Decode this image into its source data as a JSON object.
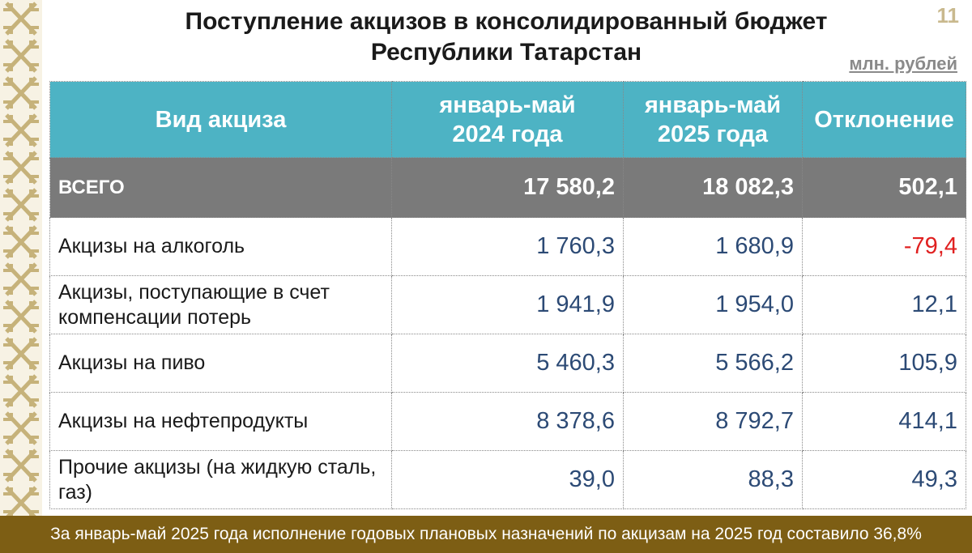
{
  "title": {
    "line1": "Поступление акцизов в консолидированный бюджет",
    "line2": "Республики Татарстан"
  },
  "page_number": "11",
  "units": "млн. рублей",
  "table": {
    "headers": {
      "type": "Вид акциза",
      "period1_line1": "январь-май",
      "period1_line2": "2024 года",
      "period2_line1": "январь-май",
      "period2_line2": "2025 года",
      "deviation": "Отклонение"
    },
    "total": {
      "label": "ВСЕГО",
      "v2024": "17 580,2",
      "v2025": "18 082,3",
      "diff": "502,1"
    },
    "rows": [
      {
        "label": "Акцизы на алкоголь",
        "v2024": "1 760,3",
        "v2025": "1 680,9",
        "diff": "-79,4",
        "negative": true
      },
      {
        "label": "Акцизы, поступающие в счет компенсации потерь",
        "v2024": "1 941,9",
        "v2025": "1 954,0",
        "diff": "12,1"
      },
      {
        "label": "Акцизы на пиво",
        "v2024": "5 460,3",
        "v2025": "5 566,2",
        "diff": "105,9"
      },
      {
        "label": "Акцизы на нефтепродукты",
        "v2024": "8 378,6",
        "v2025": "8 792,7",
        "diff": "414,1"
      },
      {
        "label": "Прочие акцизы (на жидкую сталь, газ)",
        "v2024": "39,0",
        "v2025": "88,3",
        "diff": "49,3"
      }
    ]
  },
  "footer": "За январь-май 2025 года исполнение годовых плановых назначений по акцизам на 2025 год составило 36,8%",
  "colors": {
    "header_bg": "#4db3c4",
    "total_bg": "#7a7a7a",
    "number_text": "#2c4a75",
    "negative_text": "#e02020",
    "footer_bg": "#7d5e14",
    "ornament": "#c6b27a"
  }
}
